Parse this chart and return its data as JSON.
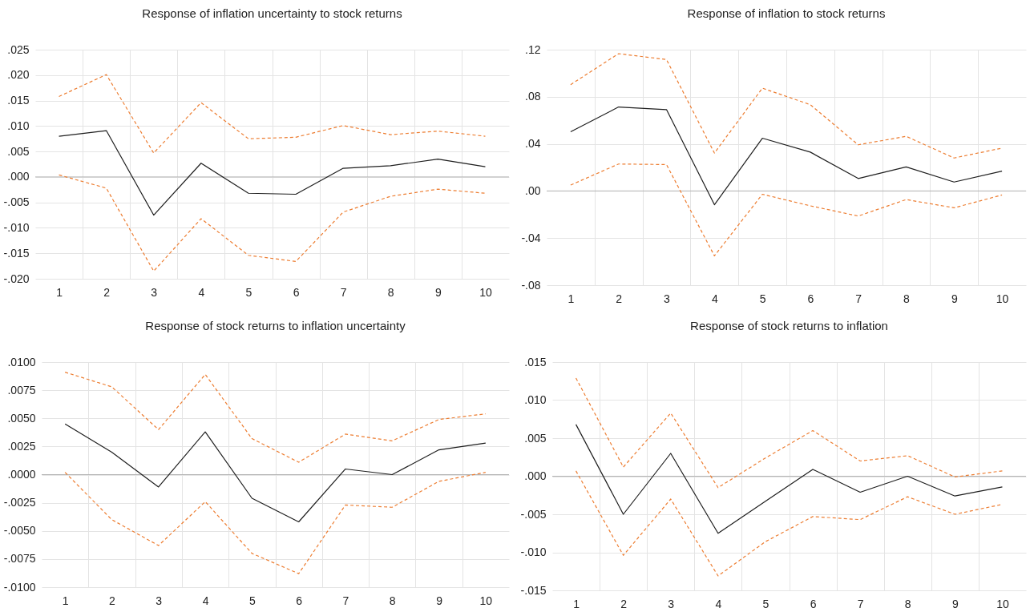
{
  "chart_data": [
    {
      "type": "line",
      "title": "Response of inflation uncertainty to stock returns",
      "categories": [
        "1",
        "2",
        "3",
        "4",
        "5",
        "6",
        "7",
        "8",
        "9",
        "10"
      ],
      "series": [
        {
          "color": "#ed7d31",
          "line_style": "dashed",
          "values": [
            0.0158,
            0.0201,
            0.0047,
            0.0146,
            0.0075,
            0.0078,
            0.0101,
            0.0083,
            0.009,
            0.008
          ]
        },
        {
          "color": "#1e1e1e",
          "line_style": "solid",
          "values": [
            0.008,
            0.0091,
            -0.0075,
            0.0027,
            -0.0032,
            -0.0034,
            0.0017,
            0.0022,
            0.0035,
            0.002
          ]
        },
        {
          "color": "#ed7d31",
          "line_style": "dashed",
          "values": [
            0.0004,
            -0.0022,
            -0.0185,
            -0.0082,
            -0.0154,
            -0.0166,
            -0.0069,
            -0.0038,
            -0.0024,
            -0.0032
          ]
        }
      ],
      "ylim": [
        -0.02,
        0.025
      ],
      "yticks": [
        {
          "value": -0.02,
          "label": "-.020"
        },
        {
          "value": -0.015,
          "label": "-.015"
        },
        {
          "value": -0.01,
          "label": "-.010"
        },
        {
          "value": -0.005,
          "label": "-.005"
        },
        {
          "value": 0,
          "label": ".000"
        },
        {
          "value": 0.005,
          "label": ".005"
        },
        {
          "value": 0.01,
          "label": ".010"
        },
        {
          "value": 0.015,
          "label": ".015"
        },
        {
          "value": 0.02,
          "label": ".020"
        },
        {
          "value": 0.025,
          "label": ".025"
        }
      ],
      "grid": true,
      "ref_lines": [
        {
          "axis": "y",
          "value": 0,
          "color": "#b4b4b4"
        }
      ]
    },
    {
      "type": "line",
      "title": "Response of inflation to stock returns",
      "categories": [
        "1",
        "2",
        "3",
        "4",
        "5",
        "6",
        "7",
        "8",
        "9",
        "10"
      ],
      "series": [
        {
          "color": "#ed7d31",
          "line_style": "dashed",
          "values": [
            0.0903,
            0.1166,
            0.1116,
            0.0322,
            0.0873,
            0.0733,
            0.0392,
            0.0464,
            0.028,
            0.0364
          ]
        },
        {
          "color": "#1e1e1e",
          "line_style": "solid",
          "values": [
            0.0503,
            0.0713,
            0.0691,
            -0.0117,
            0.0448,
            0.033,
            0.0106,
            0.0204,
            0.0076,
            0.0168
          ]
        },
        {
          "color": "#ed7d31",
          "line_style": "dashed",
          "values": [
            0.005,
            0.0229,
            0.0224,
            -0.0551,
            -0.0028,
            -0.0126,
            -0.0213,
            -0.0073,
            -0.0143,
            -0.0034
          ]
        }
      ],
      "ylim": [
        -0.08,
        0.12
      ],
      "yticks": [
        {
          "value": -0.08,
          "label": "-.08"
        },
        {
          "value": -0.04,
          "label": "-.04"
        },
        {
          "value": 0,
          "label": ".00"
        },
        {
          "value": 0.04,
          "label": ".04"
        },
        {
          "value": 0.08,
          "label": ".08"
        },
        {
          "value": 0.12,
          "label": ".12"
        }
      ],
      "grid": true,
      "ref_lines": [
        {
          "axis": "y",
          "value": 0,
          "color": "#b4b4b4"
        }
      ]
    },
    {
      "type": "line",
      "title": "Response of stock returns to inflation uncertainty",
      "categories": [
        "1",
        "2",
        "3",
        "4",
        "5",
        "6",
        "7",
        "8",
        "9",
        "10"
      ],
      "series": [
        {
          "color": "#ed7d31",
          "line_style": "dashed",
          "values": [
            0.0091,
            0.0078,
            0.004,
            0.0089,
            0.0032,
            0.0011,
            0.0036,
            0.003,
            0.0049,
            0.0054
          ]
        },
        {
          "color": "#1e1e1e",
          "line_style": "solid",
          "values": [
            0.0045,
            0.002,
            -0.0011,
            0.0038,
            -0.0021,
            -0.0042,
            0.0005,
            0.0,
            0.0022,
            0.0028
          ]
        },
        {
          "color": "#ed7d31",
          "line_style": "dashed",
          "values": [
            0.0002,
            -0.004,
            -0.0063,
            -0.0024,
            -0.007,
            -0.0088,
            -0.0027,
            -0.0029,
            -0.0006,
            0.0002
          ]
        }
      ],
      "ylim": [
        -0.01,
        0.01
      ],
      "yticks": [
        {
          "value": -0.01,
          "label": "-.0100"
        },
        {
          "value": -0.0075,
          "label": "-.0075"
        },
        {
          "value": -0.005,
          "label": "-.0050"
        },
        {
          "value": -0.0025,
          "label": "-.0025"
        },
        {
          "value": 0,
          "label": ".0000"
        },
        {
          "value": 0.0025,
          "label": ".0025"
        },
        {
          "value": 0.005,
          "label": ".0050"
        },
        {
          "value": 0.0075,
          "label": ".0075"
        },
        {
          "value": 0.01,
          "label": ".0100"
        }
      ],
      "grid": true,
      "ref_lines": [
        {
          "axis": "y",
          "value": 0,
          "color": "#b4b4b4"
        }
      ]
    },
    {
      "type": "line",
      "title": "Response of stock returns to inflation",
      "categories": [
        "1",
        "2",
        "3",
        "4",
        "5",
        "6",
        "7",
        "8",
        "9",
        "10"
      ],
      "series": [
        {
          "color": "#ed7d31",
          "line_style": "dashed",
          "values": [
            0.0129,
            0.0012,
            0.0083,
            -0.0015,
            0.0024,
            0.006,
            0.002,
            0.0027,
            -0.0001,
            0.0007
          ]
        },
        {
          "color": "#1e1e1e",
          "line_style": "solid",
          "values": [
            0.0068,
            -0.005,
            0.003,
            -0.0075,
            -0.0033,
            0.0009,
            -0.0021,
            0.0,
            -0.0026,
            -0.0014
          ]
        },
        {
          "color": "#ed7d31",
          "line_style": "dashed",
          "values": [
            0.0007,
            -0.0104,
            -0.003,
            -0.0131,
            -0.0086,
            -0.0053,
            -0.0057,
            -0.0027,
            -0.005,
            -0.0037
          ]
        }
      ],
      "ylim": [
        -0.015,
        0.015
      ],
      "yticks": [
        {
          "value": -0.015,
          "label": "-.015"
        },
        {
          "value": -0.01,
          "label": "-.010"
        },
        {
          "value": -0.005,
          "label": "-.005"
        },
        {
          "value": 0,
          "label": ".000"
        },
        {
          "value": 0.005,
          "label": ".005"
        },
        {
          "value": 0.01,
          "label": ".010"
        },
        {
          "value": 0.015,
          "label": ".015"
        }
      ],
      "grid": true,
      "ref_lines": [
        {
          "axis": "y",
          "value": 0,
          "color": "#b4b4b4"
        }
      ]
    }
  ]
}
